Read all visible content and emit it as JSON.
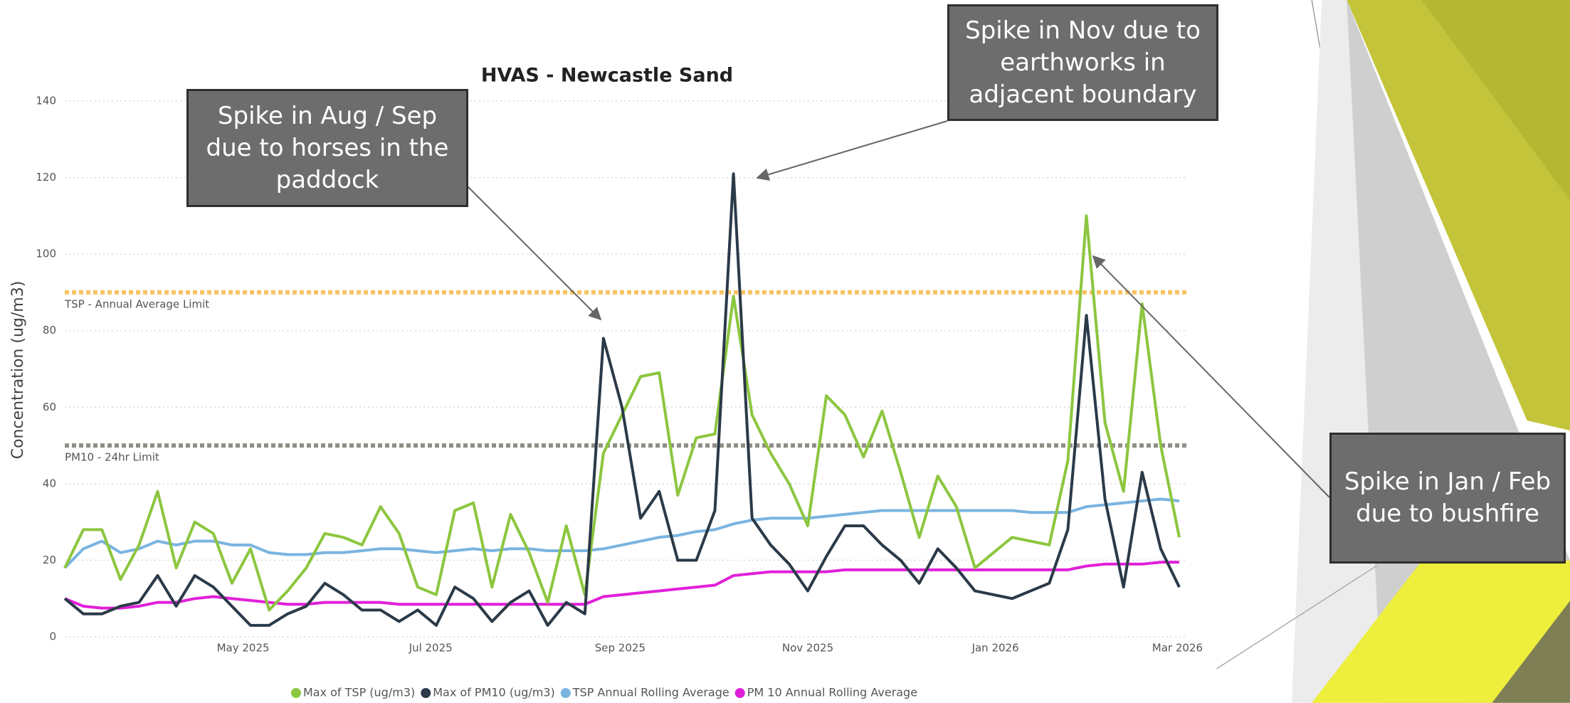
{
  "chart_data": {
    "type": "line",
    "title": "HVAS - Newcastle Sand",
    "y_label": "Concentration (ug/m3)",
    "x": [
      0,
      1,
      2,
      3,
      4,
      5,
      6,
      7,
      8,
      9,
      10,
      11,
      12,
      13,
      14,
      15,
      16,
      17,
      18,
      19,
      20,
      21,
      22,
      23,
      24,
      25,
      26,
      27,
      28,
      29,
      30,
      31,
      32,
      33,
      34,
      35,
      36,
      37,
      38,
      39,
      40,
      41,
      42,
      43,
      44,
      45,
      46,
      47,
      48,
      49,
      50,
      51,
      52,
      53,
      54,
      55,
      56,
      57,
      58,
      59,
      60
    ],
    "xlim": [
      0,
      60
    ],
    "xticks": [
      {
        "value": 9.6,
        "label": "May 2025"
      },
      {
        "value": 19.7,
        "label": "Jul 2025"
      },
      {
        "value": 29.9,
        "label": "Sep 2025"
      },
      {
        "value": 40,
        "label": "Nov 2025"
      },
      {
        "value": 50.1,
        "label": "Jan 2026"
      },
      {
        "value": 59.9,
        "label": "Mar 2026"
      }
    ],
    "ylim": [
      0,
      140
    ],
    "yticks": [
      0,
      20,
      40,
      60,
      80,
      100,
      120,
      140
    ],
    "grid": true,
    "series": [
      {
        "name": "Max of TSP (ug/m3)",
        "color": "#8cc63f",
        "values": [
          18,
          28,
          28,
          15,
          24,
          38,
          18,
          30,
          27,
          14,
          23,
          7,
          12,
          18,
          27,
          26,
          24,
          34,
          27,
          13,
          11,
          33,
          35,
          13,
          32,
          22,
          9,
          29,
          11,
          48,
          58,
          68,
          69,
          37,
          52,
          53,
          89,
          58,
          48,
          40,
          29,
          63,
          58,
          47,
          59,
          43,
          26,
          42,
          34,
          18,
          22,
          26,
          25,
          24,
          46,
          110,
          56,
          38,
          87,
          50,
          26
        ]
      },
      {
        "name": "Max of PM10 (ug/m3)",
        "color": "#2b3a48",
        "values": [
          10,
          6,
          6,
          8,
          9,
          16,
          8,
          16,
          13,
          8,
          3,
          3,
          6,
          8,
          14,
          11,
          7,
          7,
          4,
          7,
          3,
          13,
          10,
          4,
          9,
          12,
          3,
          9,
          6,
          78,
          60,
          31,
          38,
          20,
          20,
          33,
          121,
          31,
          24,
          19,
          12,
          21,
          29,
          29,
          24,
          20,
          14,
          23,
          18,
          12,
          11,
          10,
          12,
          14,
          28,
          84,
          36,
          13,
          43,
          23,
          13
        ]
      },
      {
        "name": "TSP Annual Rolling Average",
        "color": "#7ab4e0",
        "values": [
          18,
          23,
          25,
          22,
          23,
          25,
          24,
          25,
          25,
          24,
          24,
          22,
          21.5,
          21.5,
          22,
          22,
          22.5,
          23,
          23,
          22.5,
          22,
          22.5,
          23,
          22.5,
          23,
          23,
          22.5,
          22.5,
          22.5,
          23,
          24,
          25,
          26,
          26.5,
          27.5,
          28,
          29.5,
          30.5,
          31,
          31,
          31,
          31.5,
          32,
          32.5,
          33,
          33,
          33,
          33,
          33,
          33,
          33,
          33,
          32.5,
          32.5,
          32.5,
          34,
          34.5,
          35,
          35.5,
          36,
          35.5
        ]
      },
      {
        "name": "PM 10 Annual Rolling Average",
        "color": "#e020d8",
        "values": [
          10,
          8,
          7.5,
          7.5,
          8,
          9,
          9,
          10,
          10.5,
          10,
          9.5,
          9,
          8.5,
          8.5,
          9,
          9,
          9,
          9,
          8.5,
          8.5,
          8.5,
          8.5,
          8.5,
          8.5,
          8.5,
          8.5,
          8.5,
          8.5,
          8.5,
          10.5,
          11,
          11.5,
          12,
          12.5,
          13,
          13.5,
          16,
          16.5,
          17,
          17,
          17,
          17,
          17.5,
          17.5,
          17.5,
          17.5,
          17.5,
          17.5,
          17.5,
          17.5,
          17.5,
          17.5,
          17.5,
          17.5,
          17.5,
          18.5,
          19,
          19,
          19,
          19.5,
          19.5
        ]
      }
    ],
    "reference_lines": [
      {
        "value": 90,
        "label": "TSP - Annual Average Limit",
        "color": "#f5c462"
      },
      {
        "value": 50,
        "label": "PM10 - 24hr Limit",
        "color": "#8e8e86"
      }
    ],
    "legend": "bottom"
  },
  "annotations": [
    {
      "text": "Spike in Aug / Sep due to horses in the paddock"
    },
    {
      "text": "Spike in Nov due to earthworks in adjacent boundary"
    },
    {
      "text": "Spike in Jan / Feb due to bushfire"
    }
  ]
}
